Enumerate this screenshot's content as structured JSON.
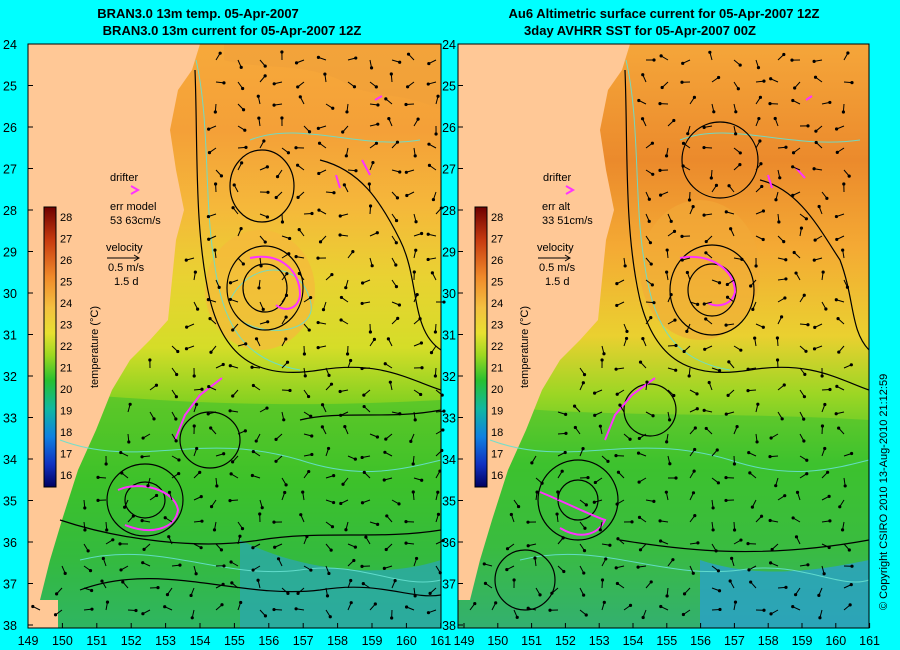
{
  "panels": [
    {
      "title_line1": "BRAN3.0 13m temp. 05-Apr-2007",
      "title_line2": "BRAN3.0 13m current for 05-Apr-2007 12Z",
      "drifter_label": "drifter",
      "err_label": "err model",
      "err_value": "53 63cm/s",
      "velocity_label": "velocity",
      "velocity_scale": "0.5 m/s",
      "velocity_days": "1.5 d"
    },
    {
      "title_line1": "Au6 Altimetric surface current for 05-Apr-2007 12Z",
      "title_line2": "3day AVHRR SST for 05-Apr-2007 00Z",
      "drifter_label": "drifter",
      "err_label": "err alt",
      "err_value": "33 51cm/s",
      "velocity_label": "velocity",
      "velocity_scale": "0.5 m/s",
      "velocity_days": "1.5 d"
    }
  ],
  "y_ticks": [
    "24",
    "25",
    "26",
    "27",
    "28",
    "29",
    "30",
    "31",
    "32",
    "33",
    "34",
    "35",
    "36",
    "37",
    "38"
  ],
  "x_ticks": [
    "149",
    "150",
    "151",
    "152",
    "153",
    "154",
    "155",
    "156",
    "157",
    "158",
    "159",
    "160",
    "161"
  ],
  "colorbar": {
    "ticks": [
      "28",
      "27",
      "26",
      "25",
      "24",
      "23",
      "22",
      "21",
      "20",
      "19",
      "18",
      "17",
      "16"
    ],
    "label": "temperature (°C)"
  },
  "copyright": "© Copyright CSIRO 2010   13-Aug-2010 21:12:59",
  "colors": {
    "background": "#00ffff",
    "land": "#ffc896",
    "drifter": "#ff33ff",
    "contour": "#66e0d0"
  }
}
